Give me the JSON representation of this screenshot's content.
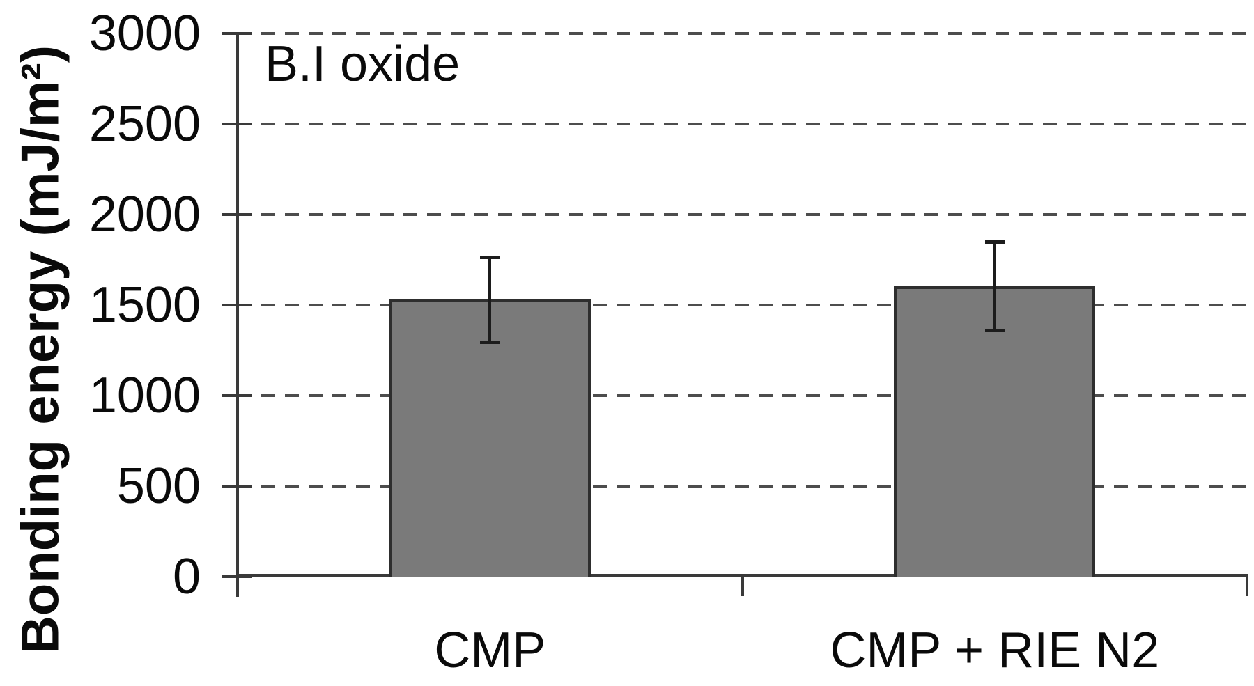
{
  "page": {
    "background": "#ffffff"
  },
  "chart_data": {
    "type": "bar",
    "title": "",
    "annotation": "B.I oxide",
    "ylabel": "Bonding energy (mJ/m²)",
    "xlabel": "",
    "categories": [
      "CMP",
      "CMP + RIE N2"
    ],
    "values": [
      1530,
      1605
    ],
    "error_plus": [
      235,
      245
    ],
    "error_minus": [
      235,
      245
    ],
    "y_ticks": [
      0,
      500,
      1000,
      1500,
      2000,
      2500,
      3000
    ],
    "y_tick_labels": [
      "0",
      "500",
      "1000",
      "1500",
      "2000",
      "2500",
      "3000"
    ],
    "ylim": [
      0,
      3000
    ],
    "grid": "horizontal-dashed",
    "legend": "none",
    "colors": {
      "bar_fill": "#7a7a7a",
      "bar_border": "#2e2e2e",
      "gridline": "#4d4d4d",
      "axis": "#3a3a3a",
      "error_bar": "#1c1c1c",
      "text": "#0a0a0a",
      "background": "#ffffff"
    }
  }
}
